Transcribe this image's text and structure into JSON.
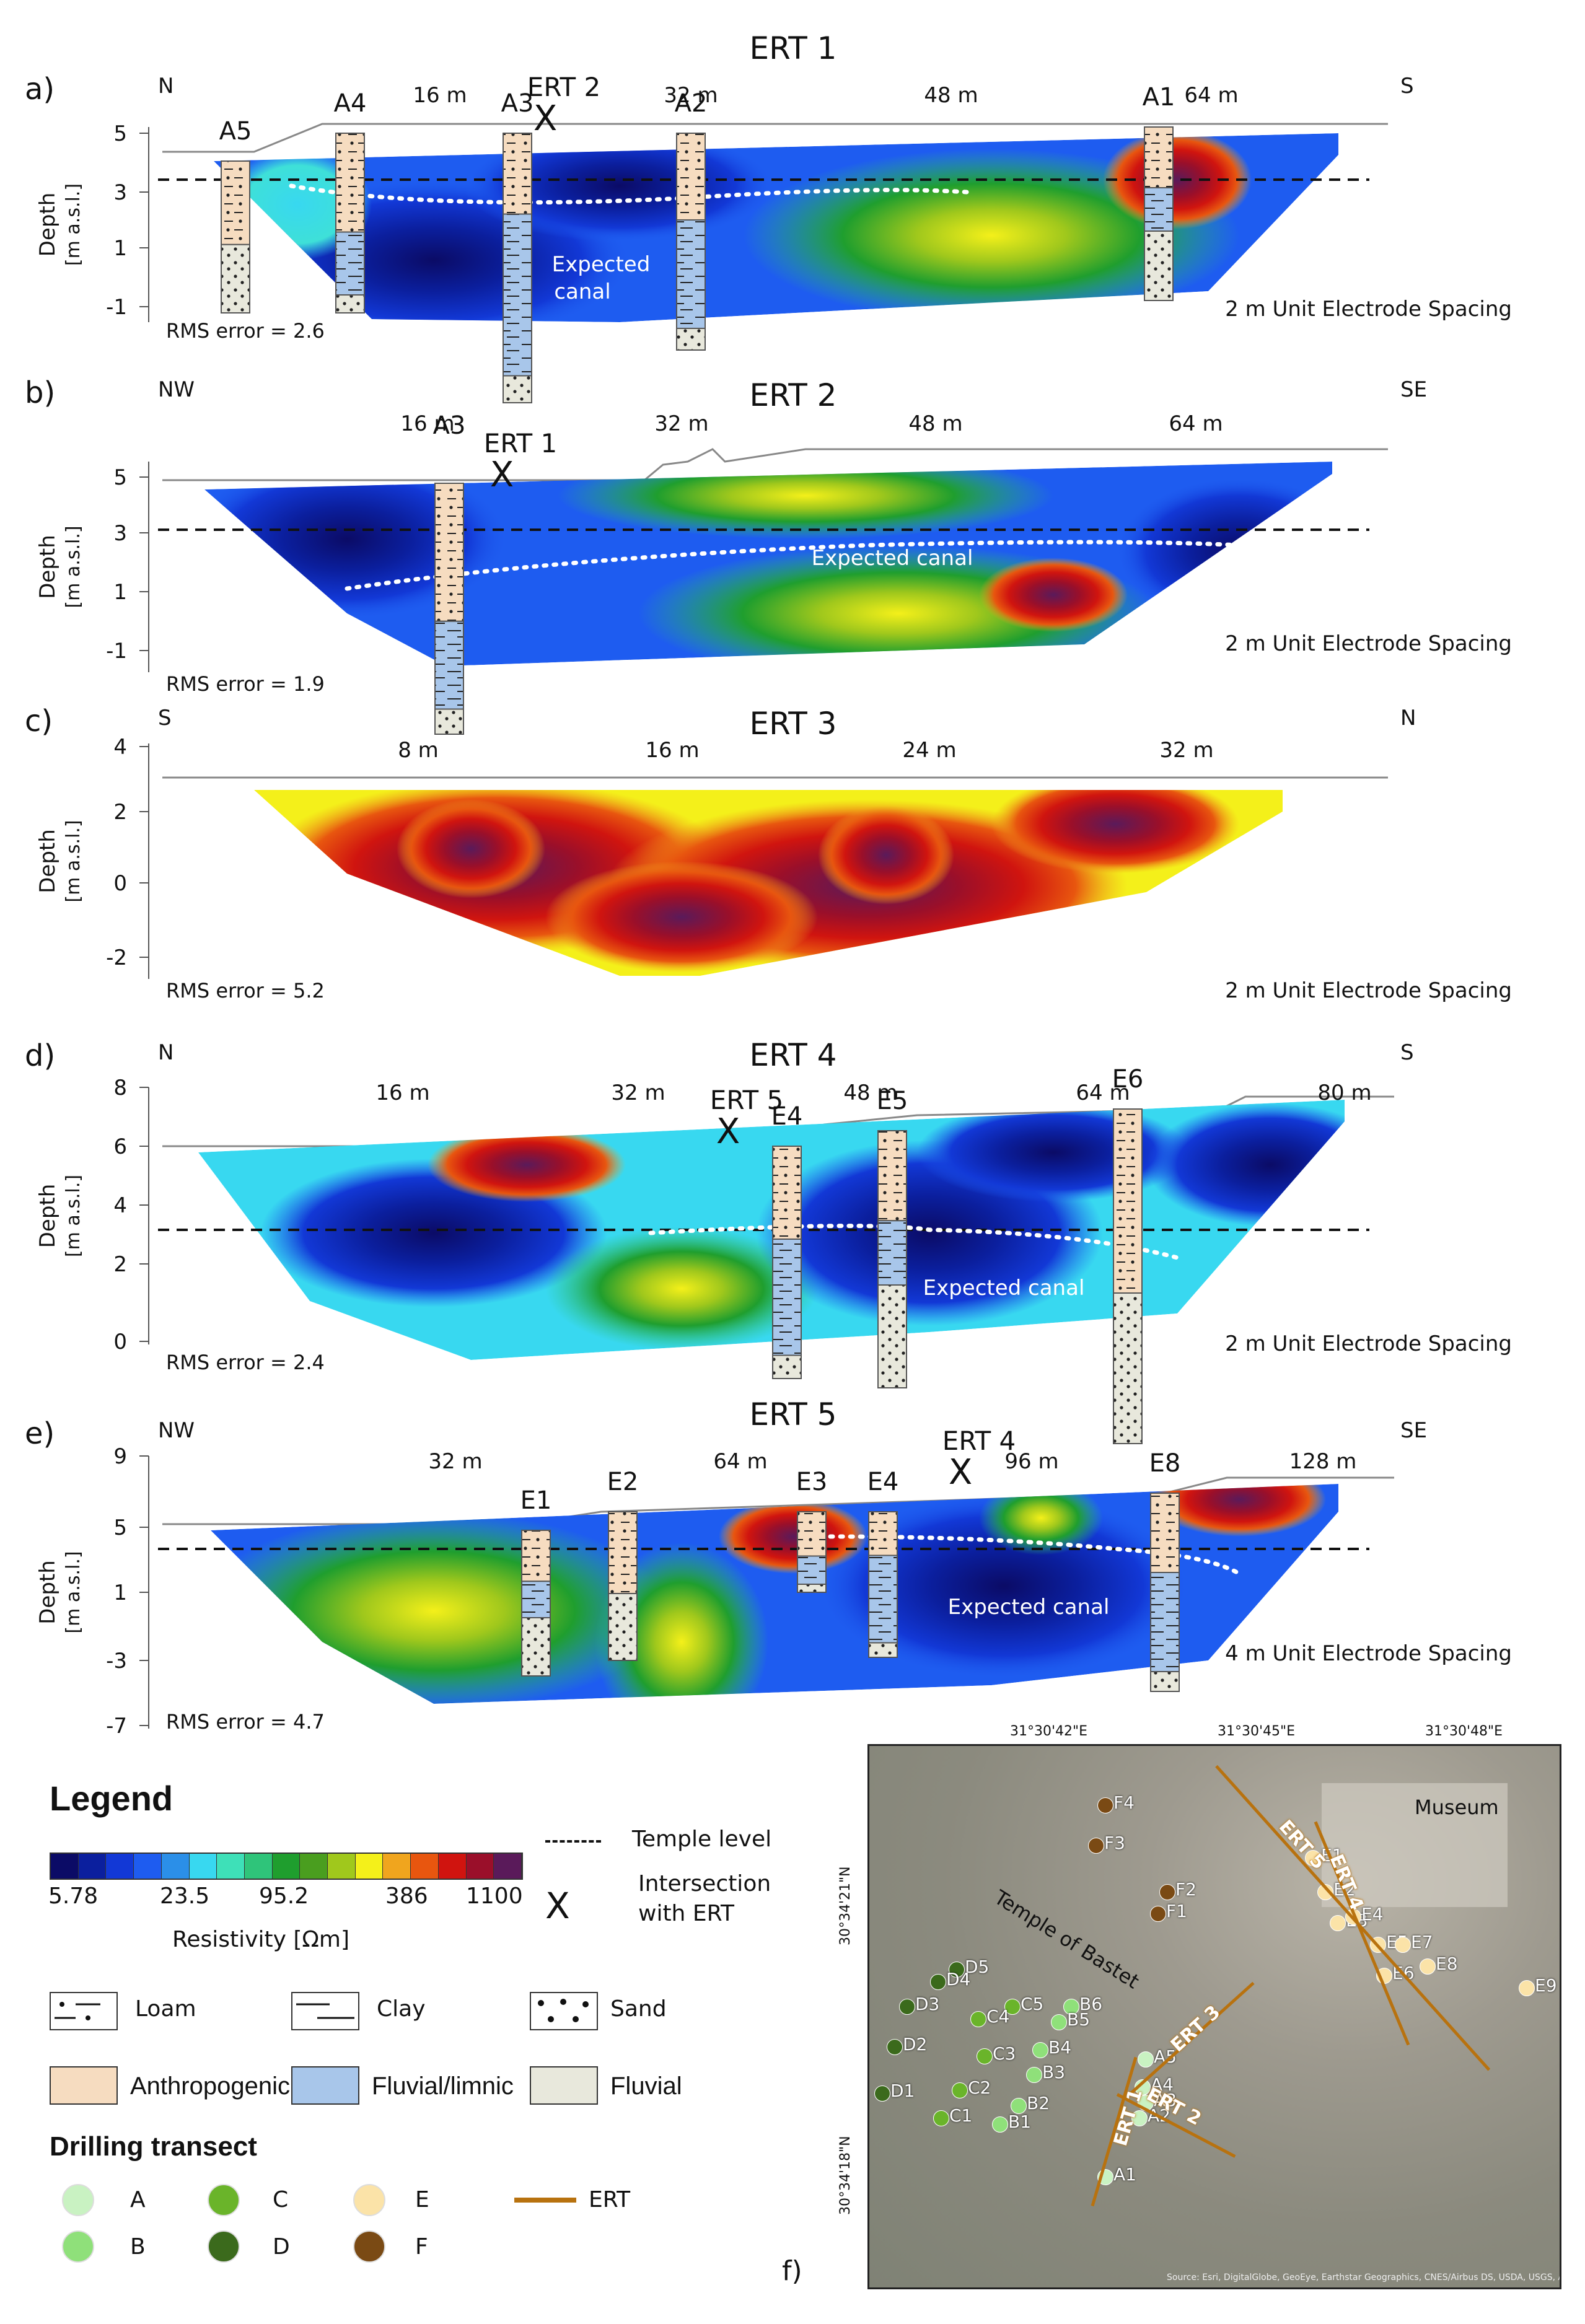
{
  "panels": [
    {
      "letter": "a)",
      "title": "ERT 1",
      "dir_left": "N",
      "dir_right": "S",
      "distances": [
        "16 m",
        "32 m",
        "48 m",
        "64 m"
      ],
      "y_ticks": [
        "5",
        "3",
        "1",
        "-1"
      ],
      "ylabel_1": "Depth",
      "ylabel_2": "[m a.s.l.]",
      "rms": "RMS error = 2.6",
      "spacing": "2 m Unit Electrode Spacing",
      "boreholes": [
        "A5",
        "A4",
        "A3",
        "A2",
        "A1"
      ],
      "intersection": "ERT 2",
      "annotation_1": "Expected",
      "annotation_2": "canal"
    },
    {
      "letter": "b)",
      "title": "ERT 2",
      "dir_left": "NW",
      "dir_right": "SE",
      "distances": [
        "16 m",
        "32 m",
        "48 m",
        "64 m"
      ],
      "y_ticks": [
        "5",
        "3",
        "1",
        "-1"
      ],
      "ylabel_1": "Depth",
      "ylabel_2": "[m a.s.l.]",
      "rms": "RMS error = 1.9",
      "spacing": "2 m Unit Electrode Spacing",
      "boreholes": [
        "A3"
      ],
      "intersection": "ERT 1",
      "annotation_1": "Expected canal"
    },
    {
      "letter": "c)",
      "title": "ERT 3",
      "dir_left": "S",
      "dir_right": "N",
      "distances": [
        "8 m",
        "16 m",
        "24 m",
        "32 m"
      ],
      "y_ticks": [
        "4",
        "2",
        "0",
        "-2"
      ],
      "ylabel_1": "Depth",
      "ylabel_2": "[m a.s.l.]",
      "rms": "RMS error = 5.2",
      "spacing": "2 m Unit Electrode Spacing"
    },
    {
      "letter": "d)",
      "title": "ERT 4",
      "dir_left": "N",
      "dir_right": "S",
      "distances": [
        "16 m",
        "32 m",
        "48 m",
        "64 m",
        "80 m"
      ],
      "y_ticks": [
        "8",
        "6",
        "4",
        "2",
        "0"
      ],
      "ylabel_1": "Depth",
      "ylabel_2": "[m a.s.l.]",
      "rms": "RMS error = 2.4",
      "spacing": "2 m Unit Electrode Spacing",
      "boreholes": [
        "E4",
        "E5",
        "E6"
      ],
      "intersection": "ERT 5",
      "annotation_1": "Expected canal"
    },
    {
      "letter": "e)",
      "title": "ERT 5",
      "dir_left": "NW",
      "dir_right": "SE",
      "distances": [
        "32 m",
        "64 m",
        "96 m",
        "128 m"
      ],
      "y_ticks": [
        "9",
        "5",
        "1",
        "-3",
        "-7"
      ],
      "ylabel_1": "Depth",
      "ylabel_2": "[m a.s.l.]",
      "rms": "RMS error = 4.7",
      "spacing": "4 m Unit Electrode Spacing",
      "boreholes": [
        "E1",
        "E2",
        "E3",
        "E4",
        "E8"
      ],
      "intersection": "ERT 4",
      "annotation_1": "Expected canal"
    }
  ],
  "legend": {
    "title": "Legend",
    "temple_level": "Temple level",
    "intersection_1": "Intersection",
    "intersection_2": "with ERT",
    "intersection_symbol": "X",
    "resistivity_colors": [
      "#0b0b66",
      "#0b1f9e",
      "#1238d6",
      "#1e5cf0",
      "#2b8fe8",
      "#38d8f0",
      "#3ee0b8",
      "#2fc47a",
      "#1f9e2e",
      "#4a9e1f",
      "#a0c81c",
      "#f4f01a",
      "#f0a51e",
      "#e8560f",
      "#d0140f",
      "#9a0f2a",
      "#5a1a5a"
    ],
    "resistivity_ticks": [
      "5.78",
      "23.5",
      "95.2",
      "386",
      "1100"
    ],
    "resistivity_label": "Resistivity [Ωm]",
    "loam": "Loam",
    "clay": "Clay",
    "sand": "Sand",
    "anthropogenic": "Anthropogenic",
    "fluvial_limnic": "Fluvial/limnic",
    "fluvial": "Fluvial",
    "drilling_title": "Drilling transect",
    "transects": [
      {
        "label": "A",
        "color": "#c9f2c2"
      },
      {
        "label": "C",
        "color": "#6ab42a"
      },
      {
        "label": "E",
        "color": "#fbe3a8"
      },
      {
        "label": "B",
        "color": "#8fe07a"
      },
      {
        "label": "D",
        "color": "#3b6a1c"
      },
      {
        "label": "F",
        "color": "#7a4a14"
      }
    ],
    "ert_label": "ERT",
    "ert_color": "#b8720f"
  },
  "map": {
    "letter": "f)",
    "top_coords": [
      "31°30'42\"E",
      "31°30'45\"E",
      "31°30'48\"E"
    ],
    "left_coords": [
      "30°34'21\"N",
      "30°34'18\"N"
    ],
    "temple": "Temple of Bastet",
    "museum": "Museum",
    "ert_lines": [
      "ERT 5",
      "ERT 4",
      "ERT 3",
      "ERT 1",
      "ERT 2"
    ],
    "points": [
      "F4",
      "F3",
      "F2",
      "F1",
      "E1",
      "E2",
      "E3",
      "E4",
      "E5",
      "E6",
      "E7",
      "E8",
      "E9",
      "D5",
      "D4",
      "D3",
      "D2",
      "D1",
      "C5",
      "C4",
      "C3",
      "C2",
      "C1",
      "B6",
      "B5",
      "B4",
      "B3",
      "B2",
      "B1",
      "A5",
      "A4",
      "A3",
      "A2",
      "A1"
    ],
    "attribution": "Source: Esri, DigitalGlobe, GeoEye, Earthstar Geographics, CNES/Airbus DS, USDA, USGS, AeroGRID, IGN, and the GIS User Community"
  }
}
